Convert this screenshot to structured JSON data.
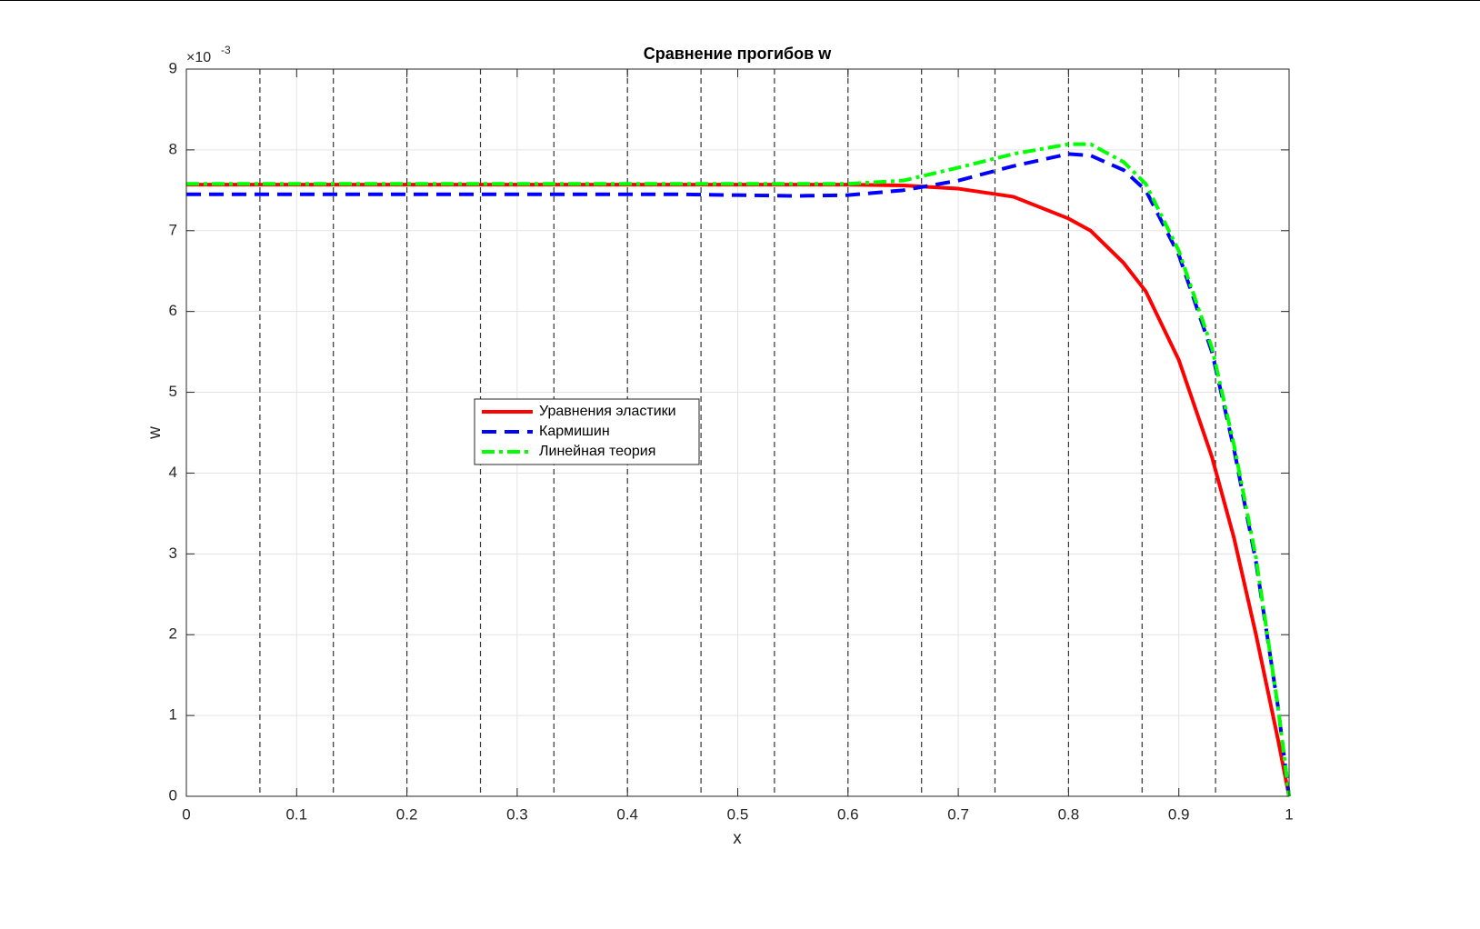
{
  "chart_data": {
    "type": "line",
    "title": "Сравнение прогибов w",
    "xlabel": "x",
    "ylabel": "w",
    "y_exponent_base": "×10",
    "y_exponent": "-3",
    "x": [
      0,
      0.05,
      0.1,
      0.15,
      0.2,
      0.25,
      0.3,
      0.35,
      0.4,
      0.45,
      0.5,
      0.55,
      0.6,
      0.65,
      0.7,
      0.75,
      0.8,
      0.82,
      0.85,
      0.87,
      0.9,
      0.93,
      0.95,
      0.97,
      0.99,
      1
    ],
    "series": [
      {
        "name": "Уравнения эластики",
        "color": "#ff0000",
        "style": "solid",
        "values": [
          7.57,
          7.57,
          7.57,
          7.57,
          7.57,
          7.57,
          7.57,
          7.57,
          7.57,
          7.57,
          7.57,
          7.57,
          7.57,
          7.56,
          7.52,
          7.42,
          7.15,
          7.0,
          6.6,
          6.25,
          5.4,
          4.2,
          3.2,
          2.0,
          0.7,
          0
        ]
      },
      {
        "name": "Кармишин",
        "color": "#0000ff",
        "style": "dashed",
        "values": [
          7.45,
          7.45,
          7.45,
          7.45,
          7.45,
          7.45,
          7.45,
          7.45,
          7.45,
          7.45,
          7.44,
          7.43,
          7.44,
          7.5,
          7.62,
          7.8,
          7.95,
          7.93,
          7.75,
          7.5,
          6.7,
          5.5,
          4.3,
          2.9,
          1.1,
          0
        ]
      },
      {
        "name": "Линейная теория",
        "color": "#00ff00",
        "style": "dashdot",
        "values": [
          7.58,
          7.58,
          7.58,
          7.58,
          7.58,
          7.58,
          7.58,
          7.58,
          7.58,
          7.58,
          7.58,
          7.58,
          7.58,
          7.62,
          7.78,
          7.95,
          8.07,
          8.07,
          7.85,
          7.58,
          6.75,
          5.55,
          4.35,
          2.95,
          1.1,
          0
        ]
      }
    ],
    "vlines": [
      0.0667,
      0.1333,
      0.2,
      0.2667,
      0.3333,
      0.4,
      0.4667,
      0.5333,
      0.6,
      0.6667,
      0.7333,
      0.8,
      0.8667,
      0.9333
    ],
    "xlim": [
      0,
      1
    ],
    "xticks": [
      0,
      0.1,
      0.2,
      0.3,
      0.4,
      0.5,
      0.6,
      0.7,
      0.8,
      0.9,
      1
    ],
    "ylim": [
      0,
      9
    ],
    "yticks": [
      0,
      1,
      2,
      3,
      4,
      5,
      6,
      7,
      8,
      9
    ],
    "grid": true,
    "legend_position": "center-left"
  }
}
